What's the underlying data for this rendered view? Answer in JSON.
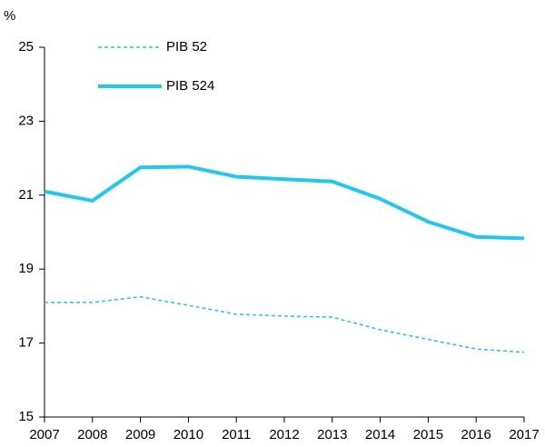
{
  "chart_data": {
    "type": "line",
    "ylabel": "%",
    "x": [
      2007,
      2008,
      2009,
      2010,
      2011,
      2012,
      2013,
      2014,
      2015,
      2016,
      2017
    ],
    "series": [
      {
        "name": "PIB 52",
        "color": "#1ec8f0",
        "linestyle": "dashed",
        "values": [
          18.1,
          18.1,
          18.25,
          18.02,
          17.78,
          17.73,
          17.7,
          17.36,
          17.1,
          16.84,
          16.75
        ]
      },
      {
        "name": "PIB 524",
        "color": "#1ec8f0",
        "linestyle": "solid",
        "values": [
          21.1,
          20.85,
          21.75,
          21.77,
          21.5,
          21.43,
          21.37,
          20.9,
          20.28,
          19.87,
          19.83
        ]
      }
    ],
    "xlim": [
      2007,
      2017
    ],
    "xticks": [
      2007,
      2008,
      2009,
      2010,
      2011,
      2012,
      2013,
      2014,
      2015,
      2016,
      2017
    ],
    "ylim": [
      15,
      25
    ],
    "yticks": [
      15,
      17,
      19,
      21,
      23,
      25
    ],
    "grid": false,
    "legend": "upper left"
  }
}
